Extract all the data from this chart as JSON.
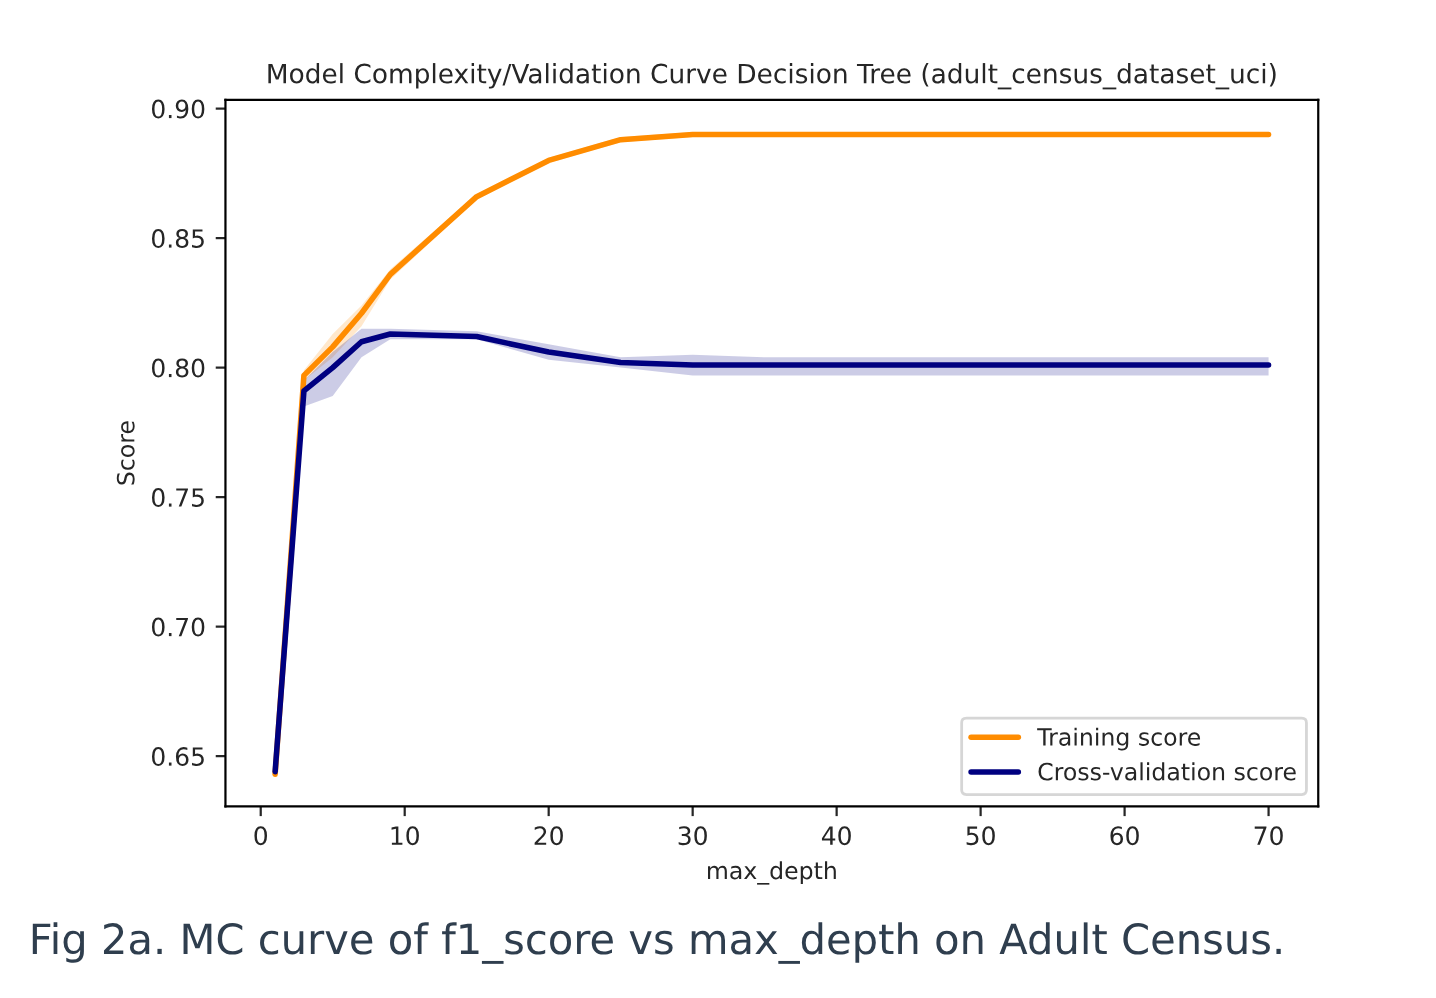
{
  "chart_data": {
    "type": "line",
    "title": "Model Complexity/Validation Curve Decision Tree (adult_census_dataset_uci)",
    "xlabel": "max_depth",
    "ylabel": "Score",
    "x": [
      1,
      3,
      5,
      7,
      9,
      15,
      20,
      25,
      30,
      35,
      40,
      45,
      50,
      55,
      60,
      65,
      70
    ],
    "series": [
      {
        "name": "Training score",
        "color": "#ff8c00",
        "values": [
          0.643,
          0.797,
          0.808,
          0.821,
          0.836,
          0.866,
          0.88,
          0.888,
          0.89,
          0.89,
          0.89,
          0.89,
          0.89,
          0.89,
          0.89,
          0.89,
          0.89
        ],
        "lower": [
          0.642,
          0.795,
          0.804,
          0.816,
          0.834,
          0.865,
          0.879,
          0.887,
          0.889,
          0.889,
          0.889,
          0.889,
          0.889,
          0.889,
          0.889,
          0.889,
          0.889
        ],
        "upper": [
          0.644,
          0.799,
          0.813,
          0.824,
          0.838,
          0.867,
          0.881,
          0.889,
          0.891,
          0.891,
          0.891,
          0.891,
          0.891,
          0.891,
          0.891,
          0.891,
          0.891
        ]
      },
      {
        "name": "Cross-validation score",
        "color": "#000080",
        "values": [
          0.644,
          0.791,
          0.8,
          0.81,
          0.813,
          0.812,
          0.806,
          0.802,
          0.801,
          0.801,
          0.801,
          0.801,
          0.801,
          0.801,
          0.801,
          0.801,
          0.801
        ],
        "lower": [
          0.642,
          0.785,
          0.789,
          0.804,
          0.811,
          0.811,
          0.803,
          0.8,
          0.797,
          0.797,
          0.797,
          0.797,
          0.797,
          0.797,
          0.797,
          0.797,
          0.797
        ],
        "upper": [
          0.646,
          0.795,
          0.806,
          0.815,
          0.815,
          0.814,
          0.809,
          0.804,
          0.805,
          0.804,
          0.804,
          0.804,
          0.804,
          0.804,
          0.804,
          0.804,
          0.804
        ]
      }
    ],
    "xlim": [
      -2.45,
      73.45
    ],
    "xticks": [
      0,
      10,
      20,
      30,
      40,
      50,
      60,
      70
    ],
    "ylim": [
      0.6306,
      0.9034
    ],
    "yticks": [
      {
        "value": 0.65,
        "label": "0.65"
      },
      {
        "value": 0.7,
        "label": "0.70"
      },
      {
        "value": 0.75,
        "label": "0.75"
      },
      {
        "value": 0.8,
        "label": "0.80"
      },
      {
        "value": 0.85,
        "label": "0.85"
      },
      {
        "value": 0.9,
        "label": "0.90"
      }
    ],
    "grid": false,
    "legend": "bottom right",
    "marker": "none",
    "line_style": "solid",
    "annotations": [
      "Fig 2a. MC curve of f1_score vs max_depth on Adult Census."
    ]
  }
}
